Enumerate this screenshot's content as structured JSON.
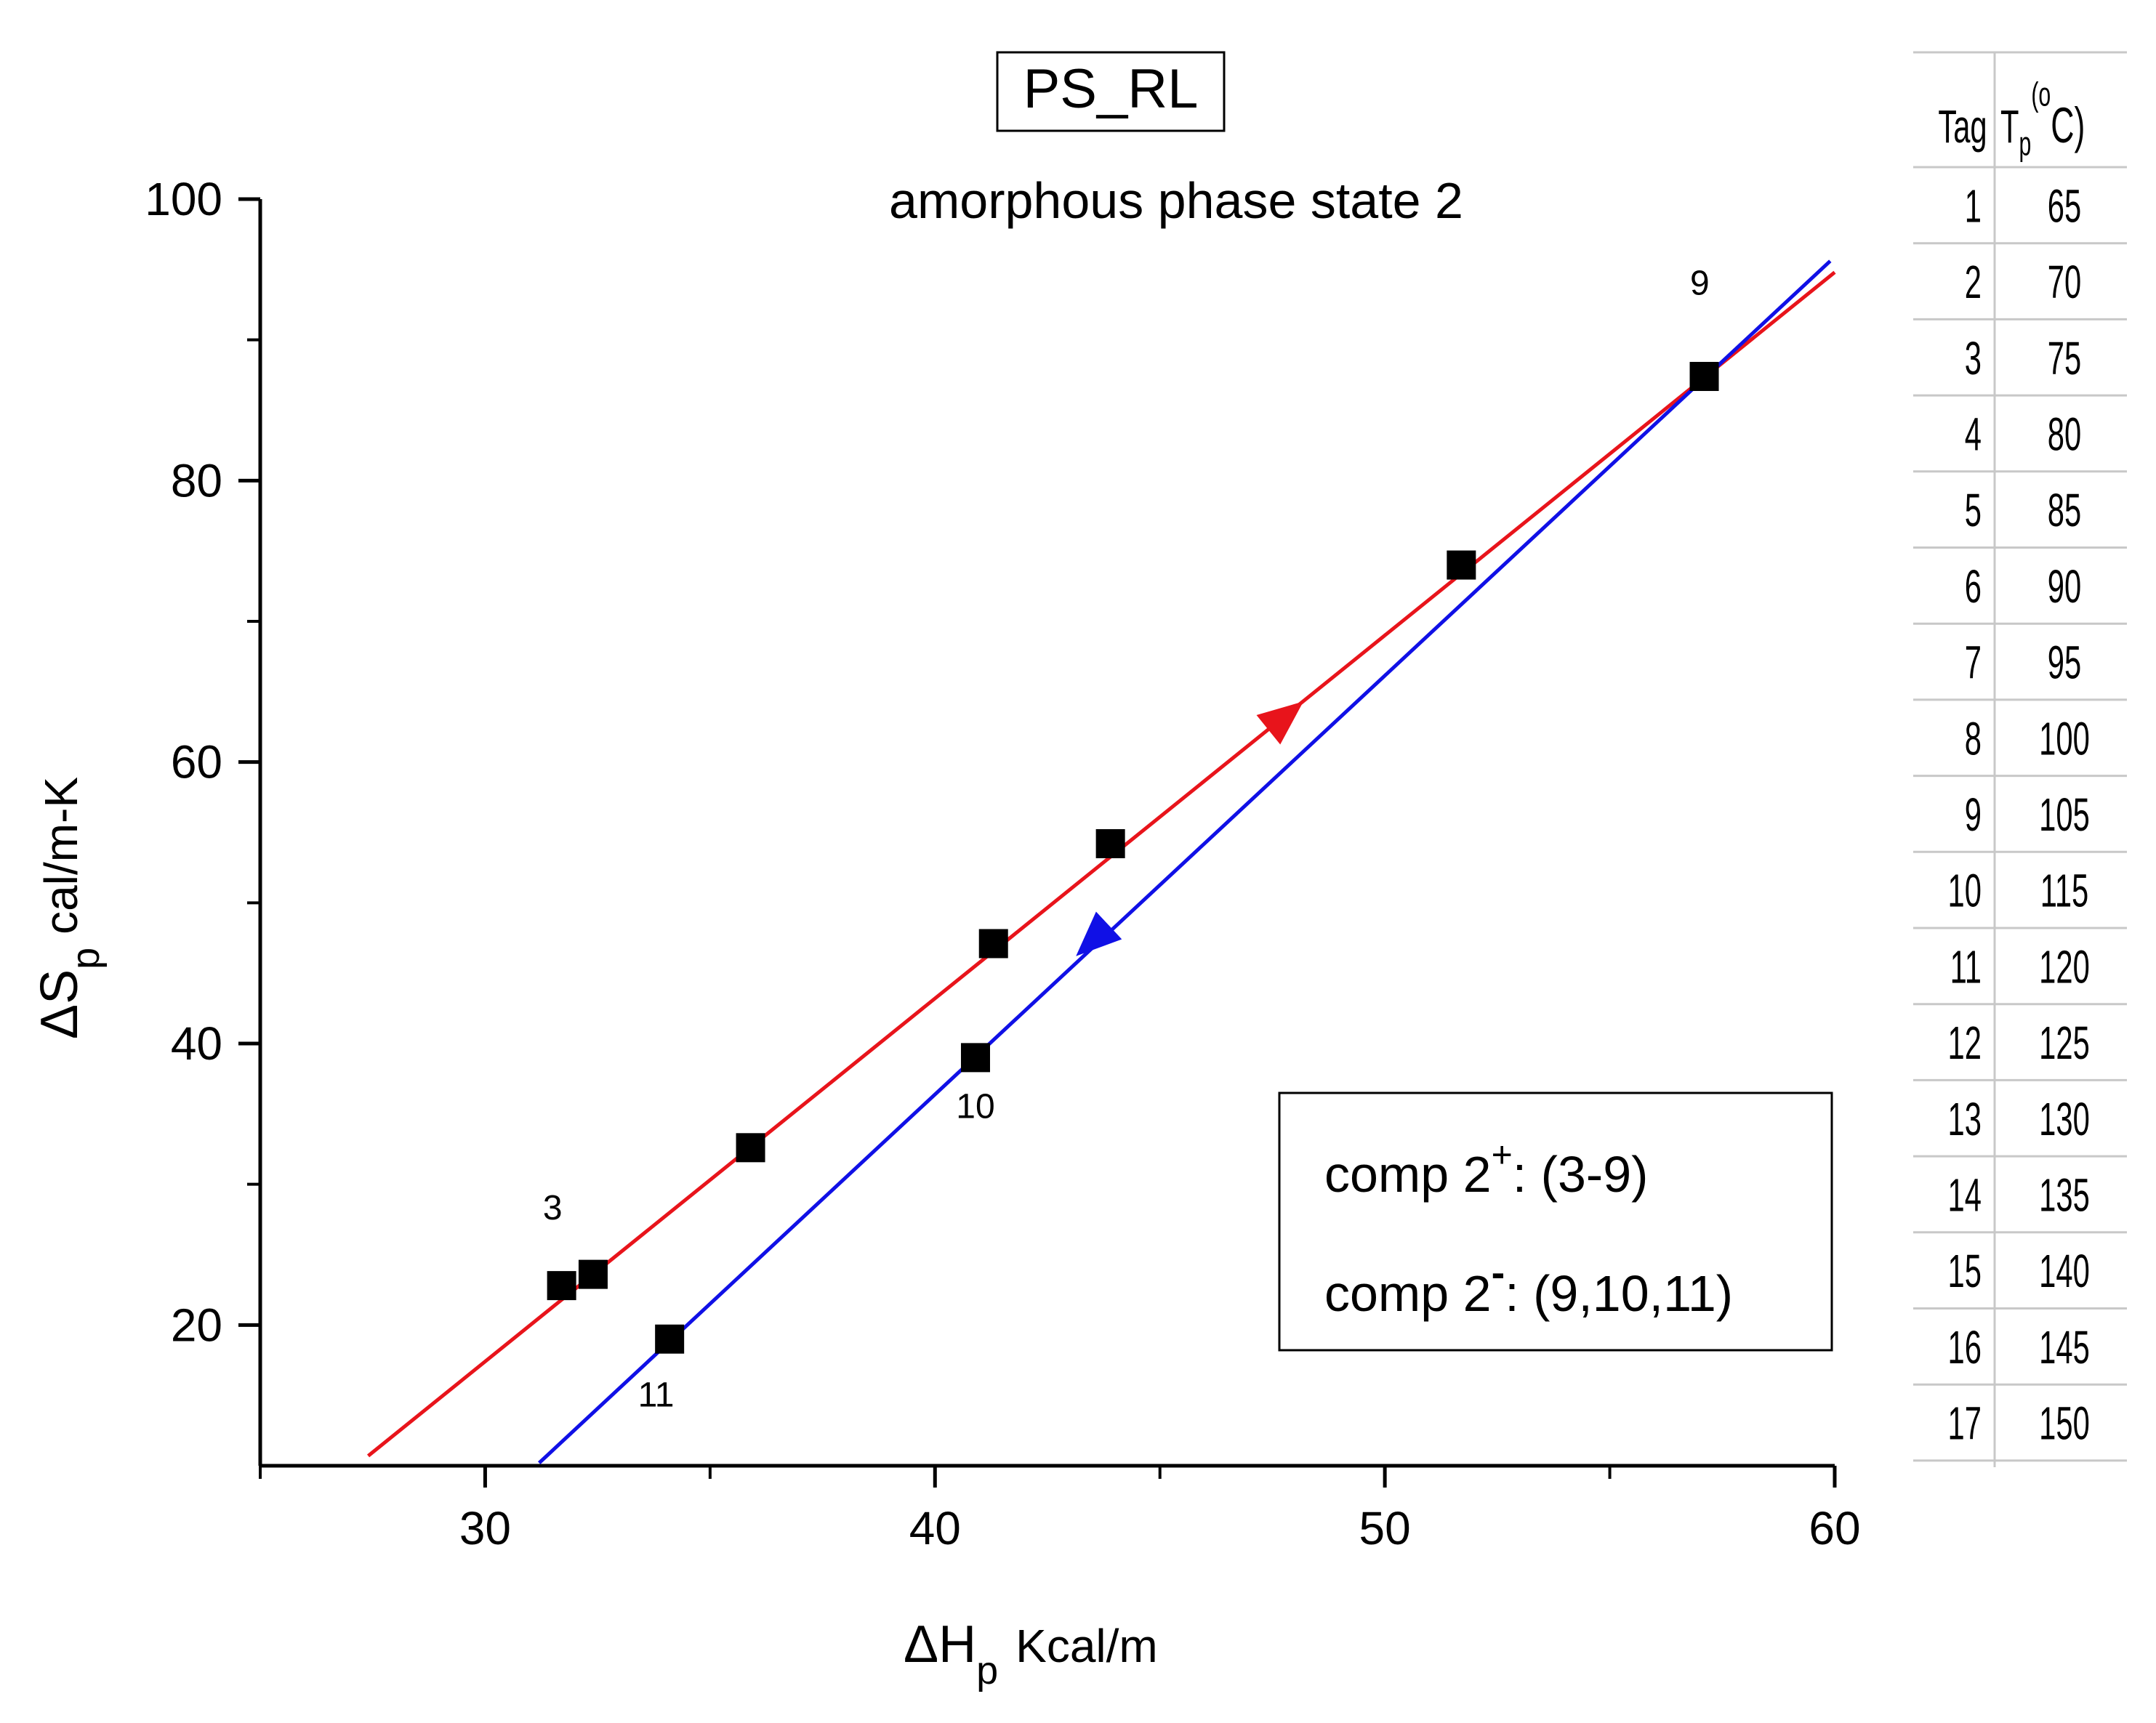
{
  "chart_data": {
    "type": "scatter",
    "title": "PS_RL",
    "subtitle": "amorphous phase state 2",
    "xlabel": {
      "main": "ΔH",
      "sub": "p",
      "unit": "Kcal/m"
    },
    "ylabel": {
      "main": "ΔS",
      "sub": "p",
      "unit": "cal/m-K"
    },
    "xlim": [
      25,
      60
    ],
    "ylim": [
      10,
      100
    ],
    "x_major_ticks": [
      30,
      40,
      50,
      60
    ],
    "x_minor_ticks": [
      25,
      35,
      45,
      55
    ],
    "y_major_ticks": [
      20,
      40,
      60,
      80,
      100
    ],
    "y_minor_ticks": [
      30,
      50,
      70,
      90
    ],
    "points": [
      {
        "x": 31.7,
        "y": 22.8
      },
      {
        "x": 32.4,
        "y": 23.6
      },
      {
        "x": 34.1,
        "y": 19.0
      },
      {
        "x": 35.9,
        "y": 32.6
      },
      {
        "x": 40.9,
        "y": 39.0
      },
      {
        "x": 41.3,
        "y": 47.1
      },
      {
        "x": 43.9,
        "y": 54.2
      },
      {
        "x": 51.7,
        "y": 74.0
      },
      {
        "x": 57.1,
        "y": 87.4
      }
    ],
    "point_labels": [
      {
        "text": "3",
        "x": 31.5,
        "y": 27.5
      },
      {
        "text": "9",
        "x": 57.0,
        "y": 93.2
      },
      {
        "text": "10",
        "x": 40.9,
        "y": 34.7
      },
      {
        "text": "11",
        "x": 33.8,
        "y": 14.2
      }
    ],
    "lines": [
      {
        "color": "#e8141b",
        "x1": 27.4,
        "y1": 10.7,
        "x2": 60.0,
        "y2": 94.8,
        "arrow": {
          "x": 47.8,
          "y": 63.3,
          "direction": "up-right"
        }
      },
      {
        "color": "#1010e6",
        "x1": 31.2,
        "y1": 10.2,
        "x2": 59.9,
        "y2": 95.6,
        "arrow": {
          "x": 43.5,
          "y": 47.3,
          "direction": "down-left"
        }
      }
    ],
    "legend": {
      "position": "bottom-right",
      "entries": [
        {
          "pre": "comp 2",
          "sup": "+",
          "post": ": (3-9)"
        },
        {
          "pre": "comp 2",
          "sup": "-",
          "post": ": (9,10,11)"
        }
      ]
    },
    "grid": false
  },
  "table": {
    "headers": {
      "tag": "Tag",
      "tp_main": "T",
      "tp_sub": "p",
      "tp_sup": "o",
      "tp_unit": "C)",
      "tp_paren": "("
    },
    "rows": [
      [
        "1",
        "65"
      ],
      [
        "2",
        "70"
      ],
      [
        "3",
        "75"
      ],
      [
        "4",
        "80"
      ],
      [
        "5",
        "85"
      ],
      [
        "6",
        "90"
      ],
      [
        "7",
        "95"
      ],
      [
        "8",
        "100"
      ],
      [
        "9",
        "105"
      ],
      [
        "10",
        "115"
      ],
      [
        "11",
        "120"
      ],
      [
        "12",
        "125"
      ],
      [
        "13",
        "130"
      ],
      [
        "14",
        "135"
      ],
      [
        "15",
        "140"
      ],
      [
        "16",
        "145"
      ],
      [
        "17",
        "150"
      ]
    ]
  }
}
